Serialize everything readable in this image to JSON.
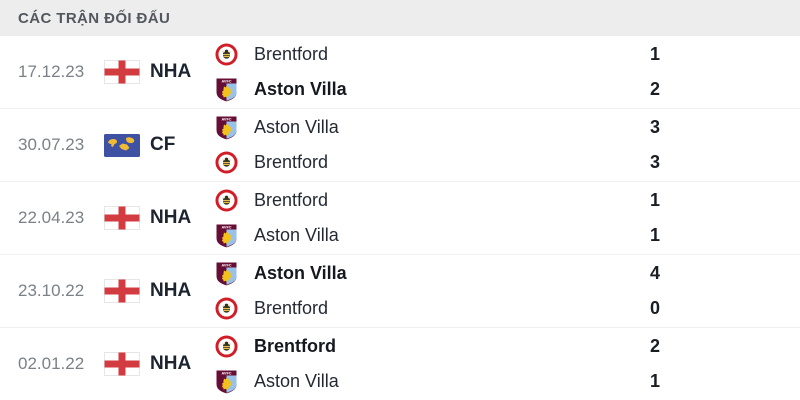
{
  "header": {
    "title": "CÁC TRẬN ĐỐI ĐẤU"
  },
  "colors": {
    "header_bg": "#ededee",
    "header_text": "#53575e",
    "date_text": "#7b8188",
    "england_flag_red": "#d23c41",
    "world_flag_blue": "#3e51a3",
    "world_flag_yellow": "#f1bc33",
    "brentford_red": "#d31d26",
    "brentford_bee_yellow": "#e9bd4a",
    "villa_claret": "#670e36",
    "villa_blue": "#9ac1e7",
    "villa_lion_yellow": "#f2c11e"
  },
  "logos": {
    "aston_villa_crest_text": "AVFC"
  },
  "matches": [
    {
      "date": "17.12.23",
      "competition": "NHA",
      "competition_icon": "england-flag-icon",
      "teams": [
        {
          "name": "Brentford",
          "logo": "brentford-logo-icon",
          "score": "1",
          "winner": false
        },
        {
          "name": "Aston Villa",
          "logo": "aston-villa-logo-icon",
          "score": "2",
          "winner": true
        }
      ]
    },
    {
      "date": "30.07.23",
      "competition": "CF",
      "competition_icon": "world-flag-icon",
      "teams": [
        {
          "name": "Aston Villa",
          "logo": "aston-villa-logo-icon",
          "score": "3",
          "winner": false
        },
        {
          "name": "Brentford",
          "logo": "brentford-logo-icon",
          "score": "3",
          "winner": false
        }
      ]
    },
    {
      "date": "22.04.23",
      "competition": "NHA",
      "competition_icon": "england-flag-icon",
      "teams": [
        {
          "name": "Brentford",
          "logo": "brentford-logo-icon",
          "score": "1",
          "winner": false
        },
        {
          "name": "Aston Villa",
          "logo": "aston-villa-logo-icon",
          "score": "1",
          "winner": false
        }
      ]
    },
    {
      "date": "23.10.22",
      "competition": "NHA",
      "competition_icon": "england-flag-icon",
      "teams": [
        {
          "name": "Aston Villa",
          "logo": "aston-villa-logo-icon",
          "score": "4",
          "winner": true
        },
        {
          "name": "Brentford",
          "logo": "brentford-logo-icon",
          "score": "0",
          "winner": false
        }
      ]
    },
    {
      "date": "02.01.22",
      "competition": "NHA",
      "competition_icon": "england-flag-icon",
      "teams": [
        {
          "name": "Brentford",
          "logo": "brentford-logo-icon",
          "score": "2",
          "winner": true
        },
        {
          "name": "Aston Villa",
          "logo": "aston-villa-logo-icon",
          "score": "1",
          "winner": false
        }
      ]
    }
  ]
}
